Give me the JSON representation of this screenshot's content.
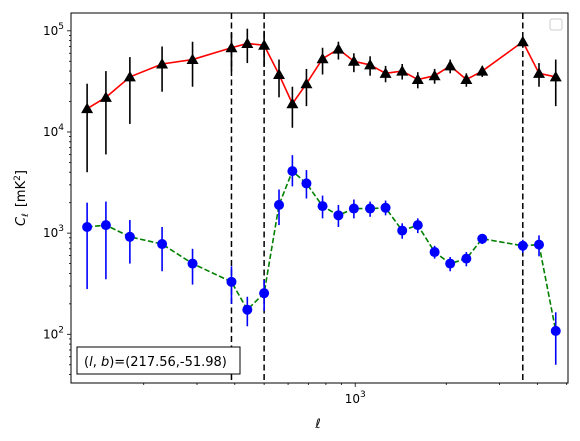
{
  "chart_data": {
    "type": "scatter",
    "xlabel": "ℓ",
    "ylabel": "C",
    "ylabel_sub": "ℓ",
    "ylabel_units": "[mK",
    "ylabel_units_sup": "2",
    "ylabel_units_close": "]",
    "x_scale": "log",
    "y_scale": "log",
    "xlim": [
      115,
      5050
    ],
    "ylim": [
      33,
      150000
    ],
    "grid": false,
    "legend": "top-right",
    "x_ticks": [
      {
        "value": 1000,
        "base": "10",
        "exp": "3"
      }
    ],
    "y_ticks": [
      {
        "value": 100,
        "base": "10",
        "exp": "2"
      },
      {
        "value": 1000,
        "base": "10",
        "exp": "3"
      },
      {
        "value": 10000,
        "base": "10",
        "exp": "4"
      },
      {
        "value": 100000,
        "base": "10",
        "exp": "5"
      }
    ],
    "vlines": [
      390,
      500,
      3580
    ],
    "annotation": "(l, b)=(217.56,-51.98)",
    "series": [
      {
        "marker": "triangle",
        "line": "solid",
        "marker_color": "#000000",
        "line_color": "#ff0000",
        "points": [
          {
            "x": 130,
            "y": 17000,
            "lo": 4000,
            "hi": 30000
          },
          {
            "x": 150,
            "y": 22000,
            "lo": 6000,
            "hi": 40000
          },
          {
            "x": 180,
            "y": 35000,
            "lo": 12000,
            "hi": 55000
          },
          {
            "x": 230,
            "y": 47000,
            "lo": 25000,
            "hi": 70000
          },
          {
            "x": 290,
            "y": 52000,
            "lo": 28000,
            "hi": 78000
          },
          {
            "x": 390,
            "y": 68000,
            "lo": 40000,
            "hi": 95000
          },
          {
            "x": 440,
            "y": 75000,
            "lo": 48000,
            "hi": 105000
          },
          {
            "x": 500,
            "y": 72000,
            "lo": 44000,
            "hi": 100000
          },
          {
            "x": 560,
            "y": 37000,
            "lo": 22000,
            "hi": 52000
          },
          {
            "x": 620,
            "y": 19000,
            "lo": 11000,
            "hi": 28000
          },
          {
            "x": 690,
            "y": 30000,
            "lo": 18000,
            "hi": 42000
          },
          {
            "x": 780,
            "y": 53000,
            "lo": 37000,
            "hi": 68000
          },
          {
            "x": 880,
            "y": 66000,
            "lo": 52000,
            "hi": 78000
          },
          {
            "x": 990,
            "y": 50000,
            "lo": 39000,
            "hi": 60000
          },
          {
            "x": 1120,
            "y": 46000,
            "lo": 36000,
            "hi": 56000
          },
          {
            "x": 1260,
            "y": 38000,
            "lo": 31000,
            "hi": 45000
          },
          {
            "x": 1430,
            "y": 40000,
            "lo": 33000,
            "hi": 47000
          },
          {
            "x": 1610,
            "y": 33000,
            "lo": 27000,
            "hi": 39000
          },
          {
            "x": 1830,
            "y": 36000,
            "lo": 30000,
            "hi": 42000
          },
          {
            "x": 2060,
            "y": 45000,
            "lo": 38000,
            "hi": 52000
          },
          {
            "x": 2330,
            "y": 33000,
            "lo": 28000,
            "hi": 38000
          },
          {
            "x": 2630,
            "y": 40000,
            "lo": 35000,
            "hi": 45000
          },
          {
            "x": 3580,
            "y": 78000,
            "lo": 68000,
            "hi": 88000
          },
          {
            "x": 4050,
            "y": 38000,
            "lo": 28000,
            "hi": 48000
          },
          {
            "x": 4600,
            "y": 35000,
            "lo": 18000,
            "hi": 52000
          }
        ]
      },
      {
        "marker": "circle",
        "line": "dashed",
        "marker_color": "#0000ff",
        "line_color": "#008000",
        "points": [
          {
            "x": 130,
            "y": 1150,
            "lo": 280,
            "hi": 2000
          },
          {
            "x": 150,
            "y": 1200,
            "lo": 350,
            "hi": 2050
          },
          {
            "x": 180,
            "y": 920,
            "lo": 500,
            "hi": 1350
          },
          {
            "x": 230,
            "y": 780,
            "lo": 420,
            "hi": 1150
          },
          {
            "x": 290,
            "y": 500,
            "lo": 310,
            "hi": 700
          },
          {
            "x": 390,
            "y": 330,
            "lo": 200,
            "hi": 470
          },
          {
            "x": 440,
            "y": 175,
            "lo": 120,
            "hi": 235
          },
          {
            "x": 500,
            "y": 255,
            "lo": 170,
            "hi": 345
          },
          {
            "x": 560,
            "y": 1900,
            "lo": 1200,
            "hi": 2700
          },
          {
            "x": 620,
            "y": 4100,
            "lo": 2900,
            "hi": 5900
          },
          {
            "x": 690,
            "y": 3100,
            "lo": 2200,
            "hi": 4200
          },
          {
            "x": 780,
            "y": 1850,
            "lo": 1400,
            "hi": 2350
          },
          {
            "x": 880,
            "y": 1500,
            "lo": 1150,
            "hi": 1900
          },
          {
            "x": 990,
            "y": 1750,
            "lo": 1400,
            "hi": 2150
          },
          {
            "x": 1120,
            "y": 1750,
            "lo": 1450,
            "hi": 2050
          },
          {
            "x": 1260,
            "y": 1780,
            "lo": 1500,
            "hi": 2100
          },
          {
            "x": 1430,
            "y": 1060,
            "lo": 880,
            "hi": 1250
          },
          {
            "x": 1610,
            "y": 1200,
            "lo": 1000,
            "hi": 1400
          },
          {
            "x": 1830,
            "y": 650,
            "lo": 560,
            "hi": 750
          },
          {
            "x": 2060,
            "y": 500,
            "lo": 420,
            "hi": 580
          },
          {
            "x": 2330,
            "y": 560,
            "lo": 470,
            "hi": 650
          },
          {
            "x": 2630,
            "y": 880,
            "lo": 780,
            "hi": 980
          },
          {
            "x": 3580,
            "y": 750,
            "lo": 640,
            "hi": 860
          },
          {
            "x": 4050,
            "y": 770,
            "lo": 590,
            "hi": 950
          },
          {
            "x": 4600,
            "y": 108,
            "lo": 50,
            "hi": 165
          }
        ]
      }
    ]
  }
}
